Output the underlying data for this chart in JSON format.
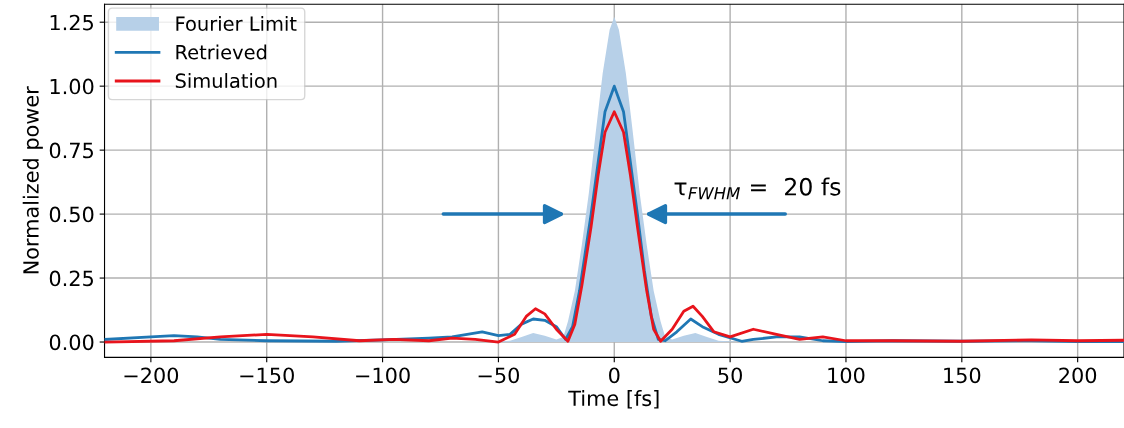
{
  "chart_data": {
    "type": "line",
    "xlabel": "Time [fs]",
    "ylabel": "Normalized power",
    "xlim": [
      -220,
      220
    ],
    "xticks": [
      -200,
      -150,
      -100,
      -50,
      0,
      50,
      100,
      150,
      200
    ],
    "ylim": [
      -0.06,
      1.32
    ],
    "yticks": [
      {
        "value": 0,
        "label": "0.00"
      },
      0.25,
      {
        "value": 0.5,
        "label": "0.50"
      },
      0.75,
      {
        "value": 1,
        "label": "1.00"
      },
      1.25
    ],
    "grid": true,
    "legend": "top left",
    "series": [
      {
        "name": "Fourier Limit",
        "type": "area",
        "color": "#b7d0e8",
        "x": [
          -220,
          -55,
          -45,
          -40,
          -35,
          -30,
          -25,
          -22,
          -20,
          -17,
          -14,
          -11,
          -8,
          -5,
          -2,
          0,
          2,
          5,
          8,
          11,
          14,
          17,
          20,
          22,
          25,
          30,
          35,
          40,
          45,
          55,
          220
        ],
        "values": [
          0,
          0,
          0.005,
          0.02,
          0.035,
          0.025,
          0.01,
          0.02,
          0.08,
          0.2,
          0.38,
          0.58,
          0.82,
          1.05,
          1.22,
          1.27,
          1.22,
          1.05,
          0.82,
          0.58,
          0.38,
          0.2,
          0.08,
          0.02,
          0.01,
          0.025,
          0.035,
          0.02,
          0.005,
          0,
          0
        ]
      },
      {
        "name": "Retrieved",
        "color": "#1f77b4",
        "x": [
          -220,
          -200,
          -190,
          -180,
          -170,
          -150,
          -120,
          -100,
          -80,
          -70,
          -57,
          -50,
          -45,
          -40,
          -35,
          -30,
          -25,
          -21,
          -18,
          -15,
          -12,
          -10,
          -7,
          -4,
          0,
          4,
          7,
          10,
          13,
          16,
          19,
          22,
          27,
          33,
          38,
          45,
          55,
          60,
          70,
          80,
          90,
          100,
          120,
          150,
          180,
          200,
          220
        ],
        "values": [
          0.01,
          0.02,
          0.025,
          0.02,
          0.01,
          0.005,
          0.003,
          0.008,
          0.015,
          0.02,
          0.04,
          0.025,
          0.03,
          0.07,
          0.09,
          0.085,
          0.06,
          0.01,
          0.06,
          0.2,
          0.38,
          0.5,
          0.7,
          0.9,
          1.0,
          0.9,
          0.7,
          0.5,
          0.28,
          0.1,
          0.01,
          0.005,
          0.04,
          0.09,
          0.06,
          0.03,
          0.003,
          0.01,
          0.02,
          0.02,
          0.005,
          0.002,
          0.005,
          0.003,
          0.005,
          0.002,
          0.002
        ]
      },
      {
        "name": "Simulation",
        "color": "#e8141c",
        "x": [
          -220,
          -190,
          -170,
          -150,
          -130,
          -110,
          -95,
          -80,
          -70,
          -60,
          -50,
          -43,
          -38,
          -34,
          -30,
          -25,
          -20,
          -17,
          -14,
          -10,
          -7,
          -4,
          0,
          4,
          7,
          10,
          14,
          17,
          20,
          25,
          30,
          34,
          38,
          43,
          50,
          60,
          70,
          80,
          90,
          100,
          120,
          150,
          180,
          200,
          220
        ],
        "values": [
          0,
          0.005,
          0.02,
          0.03,
          0.02,
          0.005,
          0.01,
          0.005,
          0.015,
          0.01,
          0.0,
          0.03,
          0.1,
          0.13,
          0.11,
          0.05,
          0.003,
          0.07,
          0.22,
          0.45,
          0.65,
          0.82,
          0.9,
          0.82,
          0.65,
          0.45,
          0.2,
          0.05,
          0.003,
          0.05,
          0.12,
          0.14,
          0.1,
          0.04,
          0.02,
          0.05,
          0.03,
          0.01,
          0.02,
          0.005,
          0.005,
          0.003,
          0.008,
          0.005,
          0.007
        ]
      }
    ],
    "annotations": [
      "τ$_{FWHM}$ =  20 fs"
    ]
  }
}
